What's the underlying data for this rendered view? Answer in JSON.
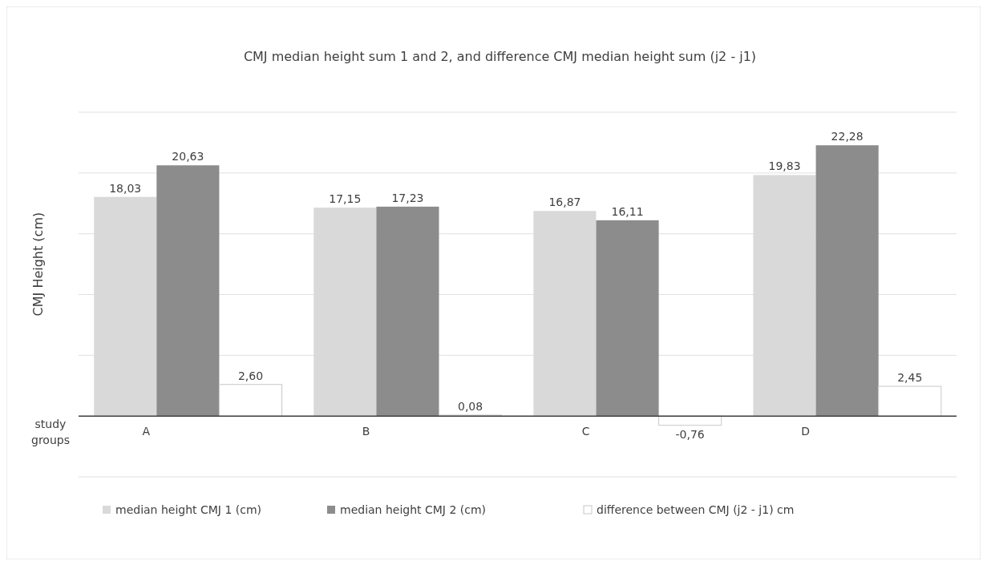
{
  "chart_data": {
    "type": "bar",
    "title": "CMJ median height sum 1 and 2, and difference CMJ median height sum (j2 - j1)",
    "ylabel": "CMJ Height (cm)",
    "xlabel": "study groups",
    "categories": [
      "A",
      "B",
      "C",
      "D"
    ],
    "series": [
      {
        "name": "median height CMJ 1 (cm)",
        "color": "#d9d9d9",
        "values": [
          18.03,
          17.15,
          16.87,
          19.83
        ],
        "value_labels": [
          "18,03",
          "17,15",
          "16,87",
          "19,83"
        ]
      },
      {
        "name": "median height CMJ 2 (cm)",
        "color": "#8c8c8c",
        "values": [
          20.63,
          17.23,
          16.11,
          22.28
        ],
        "value_labels": [
          "20,63",
          "17,23",
          "16,11",
          "22,28"
        ]
      },
      {
        "name": "difference between CMJ (j2 - j1) cm",
        "color": "#ffffff",
        "values": [
          2.6,
          0.08,
          -0.76,
          2.45
        ],
        "value_labels": [
          "2,60",
          "0,08",
          "-0,76",
          "2,45"
        ]
      }
    ],
    "ylim": [
      -5,
      25
    ],
    "yticks": [
      {
        "value": -5,
        "label": null
      },
      {
        "value": 0,
        "label": null
      },
      {
        "value": 5,
        "label": null
      },
      {
        "value": 10,
        "label": null
      },
      {
        "value": 15,
        "label": null
      },
      {
        "value": 20,
        "label": null
      },
      {
        "value": 25,
        "label": null
      }
    ],
    "grid": "y",
    "legend": "bottom",
    "tick_labels": "x"
  }
}
